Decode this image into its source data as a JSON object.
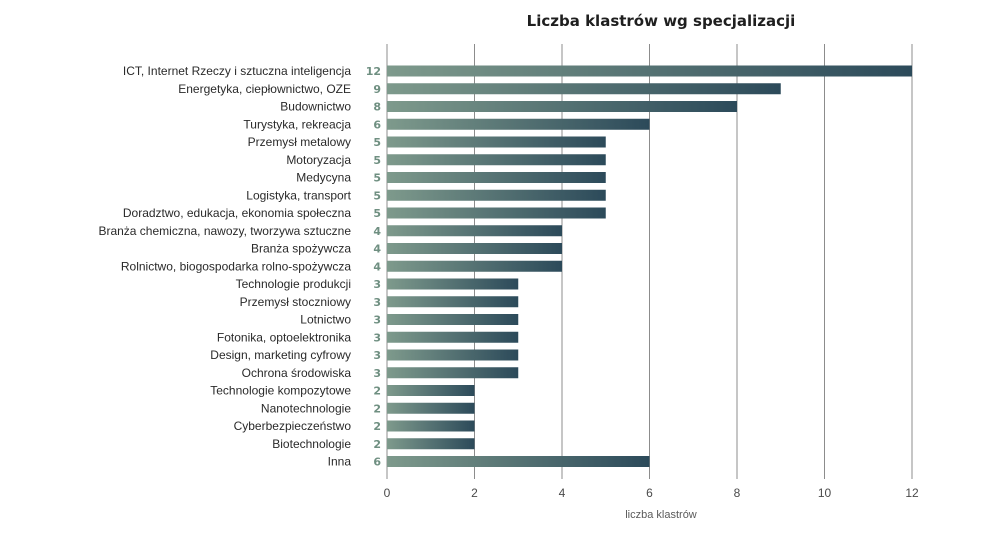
{
  "chart_data": {
    "type": "bar",
    "orientation": "horizontal",
    "title": "Liczba klastrów wg specjalizacji",
    "xlabel": "liczba klastrów",
    "ylabel": "",
    "xlim": [
      0,
      12
    ],
    "x_ticks": [
      0,
      2,
      4,
      6,
      8,
      10,
      12
    ],
    "grid": true,
    "legend": "none",
    "categories": [
      "ICT, Internet Rzeczy i sztuczna inteligencja",
      "Energetyka, ciepłownictwo, OZE",
      "Budownictwo",
      "Turystyka, rekreacja",
      "Przemysł metalowy",
      "Motoryzacja",
      "Medycyna",
      "Logistyka, transport",
      "Doradztwo, edukacja, ekonomia społeczna",
      "Branża chemiczna, nawozy, tworzywa sztuczne",
      "Branża spożywcza",
      "Rolnictwo, biogospodarka rolno-spożywcza",
      "Technologie produkcji",
      "Przemysł stoczniowy",
      "Lotnictwo",
      "Fotonika, optoelektronika",
      "Design, marketing cyfrowy",
      "Ochrona środowiska",
      "Technologie kompozytowe",
      "Nanotechnologie",
      "Cyberbezpieczeństwo",
      "Biotechnologie",
      "Inna"
    ],
    "values": [
      12,
      9,
      8,
      6,
      5,
      5,
      5,
      5,
      5,
      4,
      4,
      4,
      3,
      3,
      3,
      3,
      3,
      3,
      2,
      2,
      2,
      2,
      6
    ],
    "colors": {
      "bar_start": "#7e9a8c",
      "bar_end": "#2c4a5a",
      "value_label": "#6f8f81",
      "grid": "#8c8c8c"
    }
  }
}
